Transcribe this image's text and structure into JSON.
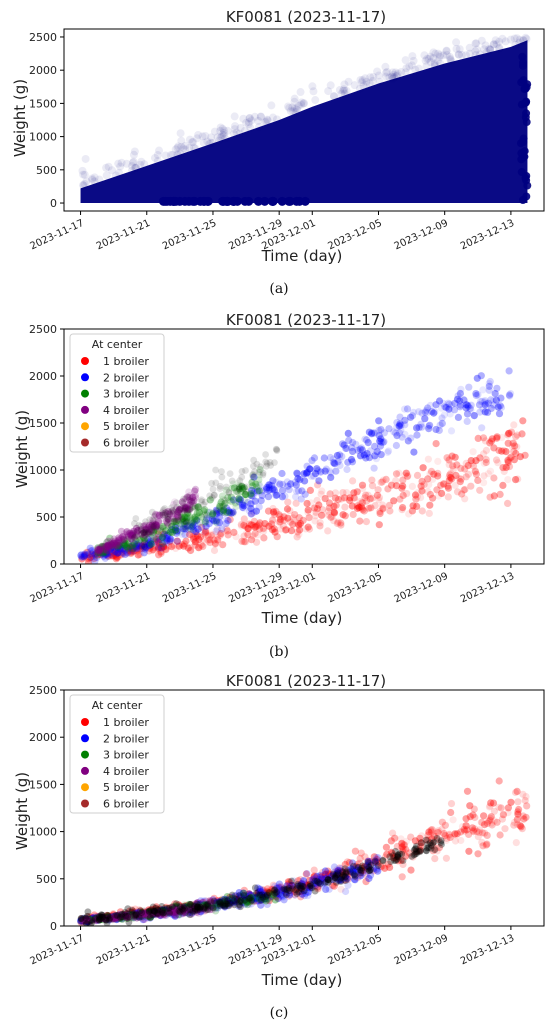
{
  "figure": {
    "captions": [
      "(a)",
      "(b)",
      "(c)"
    ]
  },
  "legend": {
    "title": "At center",
    "entries": [
      "1 broiler",
      "2 broiler",
      "3 broiler",
      "4 broiler",
      "5 broiler",
      "6 broiler"
    ]
  },
  "chart_data": [
    {
      "type": "scatter",
      "title": "KF0081 (2023-11-17)",
      "xlabel": "Time (day)",
      "ylabel": "Weight (g)",
      "x_ticks": [
        "2023-11-17",
        "2023-11-21",
        "2023-11-25",
        "2023-11-29",
        "2023-12-01",
        "2023-12-05",
        "2023-12-09",
        "2023-12-13"
      ],
      "y_ticks": [
        0,
        500,
        1000,
        1500,
        2000,
        2500
      ],
      "xlim": [
        "2023-11-16",
        "2023-12-15"
      ],
      "ylim": [
        -120,
        2620
      ],
      "legend": "none",
      "grid": false,
      "series": [
        {
          "color": "#000080",
          "band": {
            "x": [
              "2023-11-17",
              "2023-11-21",
              "2023-11-25",
              "2023-11-29",
              "2023-12-01",
              "2023-12-05",
              "2023-12-09",
              "2023-12-13",
              "2023-12-14"
            ],
            "low": [
              0,
              0,
              0,
              0,
              0,
              0,
              0,
              0,
              0
            ],
            "high": [
              220,
              560,
              900,
              1250,
              1450,
              1800,
              2100,
              2350,
              2450
            ]
          },
          "cluster_low": {
            "x": [
              "2023-11-22",
              "2023-11-25",
              "2023-11-28",
              "2023-12-01"
            ],
            "y": [
              25,
              25,
              25,
              25
            ]
          },
          "max_y": 2500
        }
      ]
    },
    {
      "type": "scatter",
      "title": "KF0081 (2023-11-17)",
      "xlabel": "Time (day)",
      "ylabel": "Weight (g)",
      "x_ticks": [
        "2023-11-17",
        "2023-11-21",
        "2023-11-25",
        "2023-11-29",
        "2023-12-01",
        "2023-12-05",
        "2023-12-09",
        "2023-12-13"
      ],
      "y_ticks": [
        0,
        500,
        1000,
        1500,
        2000,
        2500
      ],
      "xlim": [
        "2023-11-16",
        "2023-12-15"
      ],
      "ylim": [
        0,
        2500
      ],
      "legend": "top-left",
      "grid": false,
      "series": [
        {
          "name": "1 broiler",
          "color": "#ff0000",
          "x": [
            "2023-11-17",
            "2023-11-25",
            "2023-12-01",
            "2023-12-05",
            "2023-12-09",
            "2023-12-14"
          ],
          "y": [
            60,
            280,
            520,
            700,
            900,
            1200
          ],
          "spread": [
            40,
            110,
            180,
            220,
            260,
            300
          ]
        },
        {
          "name": "2 broiler",
          "color": "#0000ff",
          "x": [
            "2023-11-17",
            "2023-11-21",
            "2023-11-25",
            "2023-11-29",
            "2023-12-01",
            "2023-12-05",
            "2023-12-09",
            "2023-12-13"
          ],
          "y": [
            80,
            200,
            470,
            800,
            1000,
            1300,
            1650,
            1800
          ],
          "spread": [
            30,
            70,
            100,
            140,
            150,
            180,
            200,
            180
          ]
        },
        {
          "name": "3 broiler",
          "color": "#008000",
          "x": [
            "2023-11-18",
            "2023-11-21",
            "2023-11-25",
            "2023-11-28"
          ],
          "y": [
            120,
            320,
            580,
            880
          ],
          "spread": [
            40,
            80,
            110,
            120
          ]
        },
        {
          "name": "4 broiler",
          "color": "#800080",
          "x": [
            "2023-11-18",
            "2023-11-21",
            "2023-11-24"
          ],
          "y": [
            140,
            380,
            680
          ],
          "spread": [
            40,
            70,
            90
          ]
        },
        {
          "name": "5 broiler",
          "color": "#ffa500",
          "x": [],
          "y": [],
          "spread": []
        },
        {
          "name": "6 broiler",
          "color": "#a52a2a",
          "x": [],
          "y": [],
          "spread": []
        }
      ]
    },
    {
      "type": "scatter",
      "title": "KF0081 (2023-11-17)",
      "xlabel": "Time (day)",
      "ylabel": "Weight (g)",
      "x_ticks": [
        "2023-11-17",
        "2023-11-21",
        "2023-11-25",
        "2023-11-29",
        "2023-12-01",
        "2023-12-05",
        "2023-12-09",
        "2023-12-13"
      ],
      "y_ticks": [
        0,
        500,
        1000,
        1500,
        2000,
        2500
      ],
      "xlim": [
        "2023-11-16",
        "2023-12-15"
      ],
      "ylim": [
        0,
        2500
      ],
      "legend": "top-left",
      "grid": false,
      "series": [
        {
          "name": "1 broiler",
          "color": "#ff0000",
          "x": [
            "2023-11-17",
            "2023-11-25",
            "2023-12-01",
            "2023-12-05",
            "2023-12-09",
            "2023-12-14"
          ],
          "y": [
            60,
            230,
            450,
            700,
            950,
            1250
          ],
          "spread": [
            20,
            40,
            80,
            140,
            220,
            260
          ]
        },
        {
          "name": "2 broiler",
          "color": "#0000ff",
          "x": [
            "2023-11-17",
            "2023-11-21",
            "2023-11-25",
            "2023-11-29",
            "2023-12-01",
            "2023-12-05"
          ],
          "y": [
            60,
            120,
            220,
            350,
            450,
            650
          ],
          "spread": [
            15,
            30,
            50,
            70,
            90,
            110
          ]
        },
        {
          "name": "3 broiler",
          "color": "#008000",
          "x": [
            "2023-11-17",
            "2023-11-21",
            "2023-11-25",
            "2023-11-29"
          ],
          "y": [
            60,
            120,
            220,
            340
          ],
          "spread": [
            15,
            30,
            45,
            60
          ]
        },
        {
          "name": "4 broiler",
          "color": "#800080",
          "x": [
            "2023-11-17",
            "2023-11-21",
            "2023-11-25"
          ],
          "y": [
            60,
            120,
            210
          ],
          "spread": [
            15,
            30,
            45
          ]
        },
        {
          "name": "5 broiler",
          "color": "#ffa500",
          "x": [],
          "y": [],
          "spread": []
        },
        {
          "name": "6 broiler",
          "color": "#a52a2a",
          "x": [],
          "y": [],
          "spread": []
        }
      ]
    }
  ]
}
